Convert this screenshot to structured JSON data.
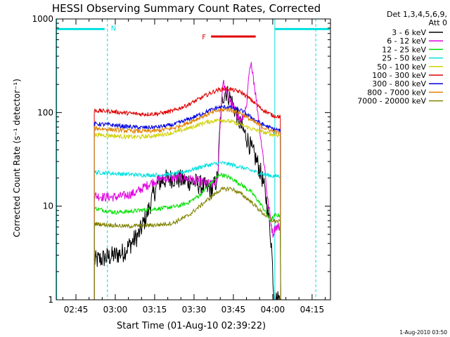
{
  "chart_data": {
    "type": "line",
    "title": "HESSI Observing Summary Count Rates, Corrected",
    "xlabel": "Start Time (01-Aug-10 02:39:22)",
    "ylabel": "Corrected Count Rate (s⁻¹ detector⁻¹)",
    "x_ticks": [
      "02:45",
      "03:00",
      "03:15",
      "03:30",
      "03:45",
      "04:00",
      "04:15"
    ],
    "x_tick_minutes": [
      45,
      60,
      75,
      90,
      105,
      120,
      135
    ],
    "xlim_minutes": [
      37.5,
      142
    ],
    "y_scale": "log",
    "ylim": [
      1,
      1000
    ],
    "y_ticks": [
      "1",
      "10",
      "100",
      "1000"
    ],
    "y_tick_values": [
      1,
      10,
      100,
      1000
    ],
    "legend_header": [
      "Det 1,3,4,5,6,9,",
      "Att 0"
    ],
    "legend_placement": "right",
    "series": [
      {
        "name": "3 - 6 keV",
        "color": "#000000",
        "points": [
          [
            52,
            2.6
          ],
          [
            56,
            2.8
          ],
          [
            60,
            3.0
          ],
          [
            63,
            3.2
          ],
          [
            66,
            4.0
          ],
          [
            69,
            5.0
          ],
          [
            72,
            8.0
          ],
          [
            74,
            12
          ],
          [
            76,
            17
          ],
          [
            78,
            19
          ],
          [
            82,
            20
          ],
          [
            86,
            19
          ],
          [
            90,
            18
          ],
          [
            94,
            16
          ],
          [
            97,
            15
          ],
          [
            99,
            20
          ],
          [
            100,
            80
          ],
          [
            101,
            150
          ],
          [
            102,
            170
          ],
          [
            104,
            140
          ],
          [
            106,
            100
          ],
          [
            108,
            70
          ],
          [
            110,
            55
          ],
          [
            112,
            40
          ],
          [
            114,
            30
          ],
          [
            116,
            20
          ],
          [
            118,
            10
          ],
          [
            119.5,
            4
          ],
          [
            120.5,
            1
          ],
          [
            123,
            1
          ]
        ]
      },
      {
        "name": "6 - 12 keV",
        "color": "#e000e0",
        "points": [
          [
            52,
            13
          ],
          [
            56,
            12.5
          ],
          [
            60,
            12.5
          ],
          [
            64,
            13
          ],
          [
            68,
            14
          ],
          [
            71,
            16
          ],
          [
            74,
            18
          ],
          [
            78,
            20
          ],
          [
            82,
            20
          ],
          [
            86,
            20
          ],
          [
            90,
            19
          ],
          [
            94,
            18
          ],
          [
            97,
            17
          ],
          [
            99,
            19
          ],
          [
            100,
            80
          ],
          [
            101,
            220
          ],
          [
            102,
            170
          ],
          [
            104,
            130
          ],
          [
            106,
            100
          ],
          [
            108,
            80
          ],
          [
            110,
            110
          ],
          [
            111,
            260
          ],
          [
            112,
            330
          ],
          [
            113,
            200
          ],
          [
            114,
            120
          ],
          [
            115,
            70
          ],
          [
            116,
            40
          ],
          [
            117,
            25
          ],
          [
            118,
            12
          ],
          [
            119,
            8
          ],
          [
            120,
            5
          ],
          [
            121,
            6
          ],
          [
            123,
            6
          ]
        ]
      },
      {
        "name": "12 - 25 keV",
        "color": "#00e000",
        "points": [
          [
            52,
            9.5
          ],
          [
            56,
            9
          ],
          [
            60,
            8.6
          ],
          [
            66,
            8.8
          ],
          [
            72,
            9.2
          ],
          [
            78,
            9.5
          ],
          [
            84,
            10
          ],
          [
            88,
            11
          ],
          [
            92,
            13
          ],
          [
            96,
            17
          ],
          [
            100,
            22
          ],
          [
            104,
            20
          ],
          [
            108,
            17
          ],
          [
            112,
            14
          ],
          [
            116,
            10
          ],
          [
            119,
            7
          ],
          [
            121,
            8
          ],
          [
            123,
            8
          ]
        ]
      },
      {
        "name": "25 - 50 keV",
        "color": "#00e0e0",
        "points": [
          [
            52,
            23
          ],
          [
            58,
            22.5
          ],
          [
            64,
            22
          ],
          [
            70,
            21.5
          ],
          [
            76,
            21.5
          ],
          [
            82,
            22
          ],
          [
            88,
            24
          ],
          [
            94,
            27
          ],
          [
            100,
            29
          ],
          [
            104,
            28
          ],
          [
            108,
            26
          ],
          [
            112,
            24
          ],
          [
            116,
            22
          ],
          [
            120,
            21
          ],
          [
            123,
            21
          ]
        ]
      },
      {
        "name": "50 - 100 keV",
        "color": "#d0d000",
        "points": [
          [
            52,
            58
          ],
          [
            58,
            57
          ],
          [
            64,
            55
          ],
          [
            70,
            55
          ],
          [
            76,
            57
          ],
          [
            82,
            61
          ],
          [
            88,
            68
          ],
          [
            94,
            78
          ],
          [
            100,
            84
          ],
          [
            104,
            80
          ],
          [
            108,
            74
          ],
          [
            112,
            67
          ],
          [
            116,
            62
          ],
          [
            120,
            58
          ],
          [
            123,
            57
          ]
        ]
      },
      {
        "name": "100 - 300 keV",
        "color": "#e00000",
        "points": [
          [
            52,
            105
          ],
          [
            58,
            103
          ],
          [
            64,
            99
          ],
          [
            70,
            96
          ],
          [
            76,
            97
          ],
          [
            82,
            104
          ],
          [
            88,
            122
          ],
          [
            94,
            150
          ],
          [
            99,
            175
          ],
          [
            103,
            180
          ],
          [
            108,
            165
          ],
          [
            112,
            135
          ],
          [
            116,
            108
          ],
          [
            120,
            93
          ],
          [
            123,
            90
          ]
        ]
      },
      {
        "name": "300 - 800 keV",
        "color": "#0000e0",
        "points": [
          [
            52,
            76
          ],
          [
            58,
            74
          ],
          [
            64,
            71
          ],
          [
            70,
            69
          ],
          [
            76,
            70
          ],
          [
            82,
            74
          ],
          [
            88,
            85
          ],
          [
            94,
            100
          ],
          [
            99,
            113
          ],
          [
            103,
            115
          ],
          [
            108,
            105
          ],
          [
            112,
            88
          ],
          [
            116,
            75
          ],
          [
            120,
            67
          ],
          [
            123,
            64
          ]
        ]
      },
      {
        "name": "800 - 7000 keV",
        "color": "#e08000",
        "points": [
          [
            52,
            68
          ],
          [
            58,
            66
          ],
          [
            64,
            64
          ],
          [
            70,
            63
          ],
          [
            76,
            64
          ],
          [
            82,
            68
          ],
          [
            88,
            78
          ],
          [
            94,
            93
          ],
          [
            99,
            105
          ],
          [
            103,
            108
          ],
          [
            108,
            98
          ],
          [
            112,
            82
          ],
          [
            116,
            70
          ],
          [
            120,
            63
          ],
          [
            123,
            60
          ]
        ]
      },
      {
        "name": "7000 - 20000 keV",
        "color": "#808000",
        "points": [
          [
            52,
            6.5
          ],
          [
            58,
            6.3
          ],
          [
            64,
            6.1
          ],
          [
            70,
            6.2
          ],
          [
            76,
            6.3
          ],
          [
            82,
            6.6
          ],
          [
            88,
            8
          ],
          [
            94,
            11
          ],
          [
            100,
            15
          ],
          [
            104,
            15.5
          ],
          [
            108,
            13.5
          ],
          [
            112,
            11
          ],
          [
            116,
            8.5
          ],
          [
            120,
            7
          ],
          [
            123,
            6.8
          ]
        ]
      }
    ],
    "annotations": [
      {
        "label": "N",
        "color": "#00e0e0"
      },
      {
        "label": "F",
        "color": "#e00000"
      }
    ],
    "spans": {
      "night": {
        "color": "#00e0e0",
        "start_minute": 37.6,
        "end_minute": 57,
        "label": "N"
      },
      "night2": {
        "color": "#00e0e0",
        "start_minute": 120.8,
        "end_minute": 142
      },
      "flare": {
        "color": "#e00000",
        "start_minute": 96.5,
        "end_minute": 113.5,
        "label": "F"
      },
      "vline_minutes": [
        57,
        120.8,
        136.4
      ],
      "data_start_minute": 52,
      "data_end_minute": 123,
      "level": 780
    },
    "footer_timestamp": "1-Aug-2010 03:50"
  }
}
